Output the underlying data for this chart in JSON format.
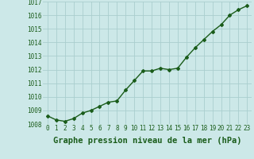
{
  "x": [
    0,
    1,
    2,
    3,
    4,
    5,
    6,
    7,
    8,
    9,
    10,
    11,
    12,
    13,
    14,
    15,
    16,
    17,
    18,
    19,
    20,
    21,
    22,
    23
  ],
  "y": [
    1008.6,
    1008.3,
    1008.2,
    1008.4,
    1008.8,
    1009.0,
    1009.3,
    1009.6,
    1009.7,
    1010.5,
    1011.2,
    1011.9,
    1011.9,
    1012.1,
    1012.0,
    1012.1,
    1012.9,
    1013.6,
    1014.2,
    1014.8,
    1015.3,
    1016.0,
    1016.4,
    1016.7
  ],
  "ylim": [
    1008,
    1017
  ],
  "yticks": [
    1008,
    1009,
    1010,
    1011,
    1012,
    1013,
    1014,
    1015,
    1016,
    1017
  ],
  "xticks": [
    0,
    1,
    2,
    3,
    4,
    5,
    6,
    7,
    8,
    9,
    10,
    11,
    12,
    13,
    14,
    15,
    16,
    17,
    18,
    19,
    20,
    21,
    22,
    23
  ],
  "xlabel": "Graphe pression niveau de la mer (hPa)",
  "line_color": "#1a5c1a",
  "marker": "D",
  "marker_size": 2.0,
  "bg_color": "#cce8e8",
  "grid_color": "#aacece",
  "tick_fontsize": 5.5,
  "xlabel_fontsize": 7.5,
  "line_width": 1.0
}
